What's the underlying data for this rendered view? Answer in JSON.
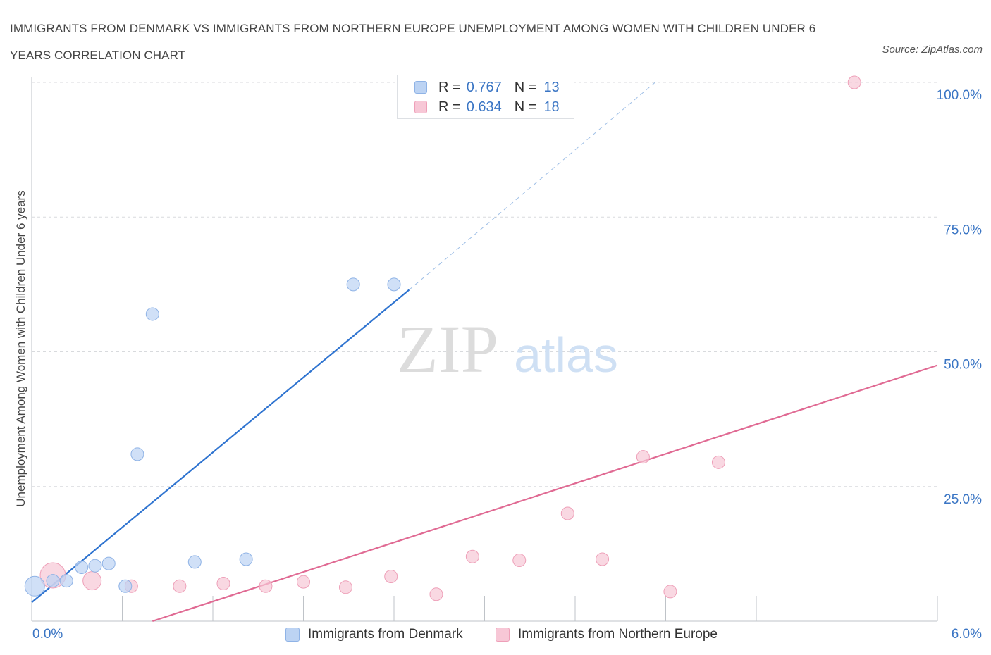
{
  "title": "IMMIGRANTS FROM DENMARK VS IMMIGRANTS FROM NORTHERN EUROPE UNEMPLOYMENT AMONG WOMEN WITH CHILDREN UNDER 6 YEARS CORRELATION CHART",
  "source": "Source: ZipAtlas.com",
  "watermark": {
    "zip": "ZIP",
    "atlas": "atlas"
  },
  "legend_top": {
    "rows": [
      {
        "r_label": "R =",
        "r_value": "0.767",
        "n_label": "N =",
        "n_value": "13"
      },
      {
        "r_label": "R =",
        "r_value": "0.634",
        "n_label": "N =",
        "n_value": "18"
      }
    ]
  },
  "legend_bottom": {
    "items": [
      {
        "label": "Immigrants from Denmark"
      },
      {
        "label": "Immigrants from Northern Europe"
      }
    ]
  },
  "x_tick_labels": {
    "left": "0.0%",
    "right": "6.0%"
  },
  "colors": {
    "denmark_fill": "#bcd3f3",
    "denmark_stroke": "#8fb3e6",
    "denmark_line": "#2f74d0",
    "northern_fill": "#f7c7d6",
    "northern_stroke": "#ee9fb8",
    "northern_line": "#e06a93",
    "tick_text": "#3a75c4",
    "grid": "#d8dadd"
  },
  "chart_data": {
    "type": "scatter",
    "title": "IMMIGRANTS FROM DENMARK VS IMMIGRANTS FROM NORTHERN EUROPE UNEMPLOYMENT AMONG WOMEN WITH CHILDREN UNDER 6 YEARS CORRELATION CHART",
    "xlabel": "",
    "ylabel": "Unemployment Among Women with Children Under 6 years",
    "xlim": [
      0,
      6
    ],
    "ylim": [
      0,
      100
    ],
    "x_ticks": [
      0,
      0.6,
      1.2,
      1.8,
      2.4,
      3.0,
      3.6,
      4.2,
      4.8,
      5.4,
      6.0
    ],
    "y_ticks": [
      25,
      50,
      75,
      100
    ],
    "y_tick_labels": [
      "25.0%",
      "50.0%",
      "75.0%",
      "100.0%"
    ],
    "grid": true,
    "series": [
      {
        "name": "Immigrants from Denmark",
        "points": [
          {
            "x": 0.02,
            "y": 6.5,
            "size": 14
          },
          {
            "x": 0.14,
            "y": 7.5,
            "size": 9
          },
          {
            "x": 0.23,
            "y": 7.5,
            "size": 9
          },
          {
            "x": 0.33,
            "y": 10.0,
            "size": 9
          },
          {
            "x": 0.42,
            "y": 10.3,
            "size": 9
          },
          {
            "x": 0.51,
            "y": 10.7,
            "size": 9
          },
          {
            "x": 0.62,
            "y": 6.5,
            "size": 9
          },
          {
            "x": 0.7,
            "y": 31.0,
            "size": 9
          },
          {
            "x": 0.8,
            "y": 57.0,
            "size": 9
          },
          {
            "x": 1.08,
            "y": 11.0,
            "size": 9
          },
          {
            "x": 1.42,
            "y": 11.5,
            "size": 9
          },
          {
            "x": 2.13,
            "y": 62.5,
            "size": 9
          },
          {
            "x": 2.4,
            "y": 62.5,
            "size": 9
          }
        ],
        "trend": {
          "x": [
            0,
            2.5
          ],
          "y": [
            3.5,
            61.5
          ]
        },
        "trend_dashed": {
          "x": [
            2.5,
            4.13
          ],
          "y": [
            61.5,
            100
          ]
        }
      },
      {
        "name": "Immigrants from Northern Europe",
        "points": [
          {
            "x": 0.14,
            "y": 8.5,
            "size": 18
          },
          {
            "x": 0.4,
            "y": 7.5,
            "size": 13
          },
          {
            "x": 0.66,
            "y": 6.5,
            "size": 9
          },
          {
            "x": 0.98,
            "y": 6.5,
            "size": 9
          },
          {
            "x": 1.27,
            "y": 7.0,
            "size": 9
          },
          {
            "x": 1.55,
            "y": 6.5,
            "size": 9
          },
          {
            "x": 1.8,
            "y": 7.3,
            "size": 9
          },
          {
            "x": 2.08,
            "y": 6.3,
            "size": 9
          },
          {
            "x": 2.38,
            "y": 8.3,
            "size": 9
          },
          {
            "x": 2.68,
            "y": 5.0,
            "size": 9
          },
          {
            "x": 2.92,
            "y": 12.0,
            "size": 9
          },
          {
            "x": 3.23,
            "y": 11.3,
            "size": 9
          },
          {
            "x": 3.55,
            "y": 20.0,
            "size": 9
          },
          {
            "x": 3.78,
            "y": 11.5,
            "size": 9
          },
          {
            "x": 4.05,
            "y": 30.5,
            "size": 9
          },
          {
            "x": 4.23,
            "y": 5.5,
            "size": 9
          },
          {
            "x": 4.55,
            "y": 29.5,
            "size": 9
          },
          {
            "x": 5.45,
            "y": 100.0,
            "size": 9
          }
        ],
        "trend": {
          "x": [
            0.8,
            6.0
          ],
          "y": [
            0,
            47.5
          ]
        }
      }
    ]
  }
}
